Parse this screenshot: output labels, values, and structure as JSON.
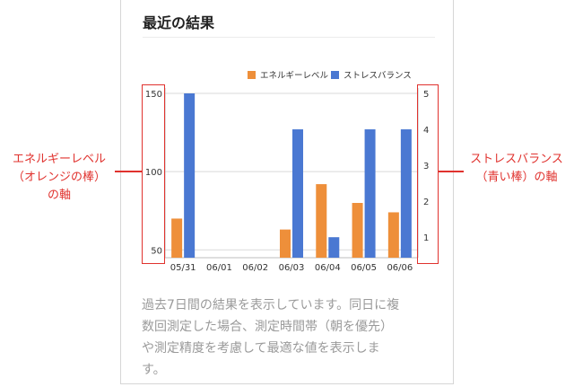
{
  "card": {
    "title": "最近の結果",
    "description_lines": [
      "過去7日間の結果を表示しています。同日に複",
      "数回測定した場合、測定時間帯（朝を優先）",
      "や測定精度を考慮して最適な値を表示しま",
      "す。"
    ]
  },
  "colors": {
    "energy": "#ee8f3a",
    "stress": "#4a78d2",
    "annotation": "#e0322e"
  },
  "annotations": {
    "left": [
      "エネルギーレベル",
      "（オレンジの棒）",
      "の軸"
    ],
    "right": [
      "ストレスバランス",
      "（青い棒）の軸"
    ]
  },
  "chart_data": {
    "type": "bar",
    "categories": [
      "05/31",
      "06/01",
      "06/02",
      "06/03",
      "06/04",
      "06/05",
      "06/06"
    ],
    "series": [
      {
        "name": "エネルギーレベル",
        "axis": "left",
        "values": [
          70,
          null,
          null,
          63,
          92,
          80,
          74
        ]
      },
      {
        "name": "ストレスバランス",
        "axis": "right",
        "values": [
          5,
          null,
          null,
          4,
          1,
          4,
          4
        ]
      }
    ],
    "left_axis": {
      "ylim": [
        45,
        150
      ],
      "ticks": [
        50,
        100,
        150
      ]
    },
    "right_axis": {
      "ylim": [
        0.43,
        5
      ],
      "ticks": [
        1,
        2,
        3,
        4,
        5
      ]
    },
    "legend_position": "top-right",
    "grid": true
  }
}
